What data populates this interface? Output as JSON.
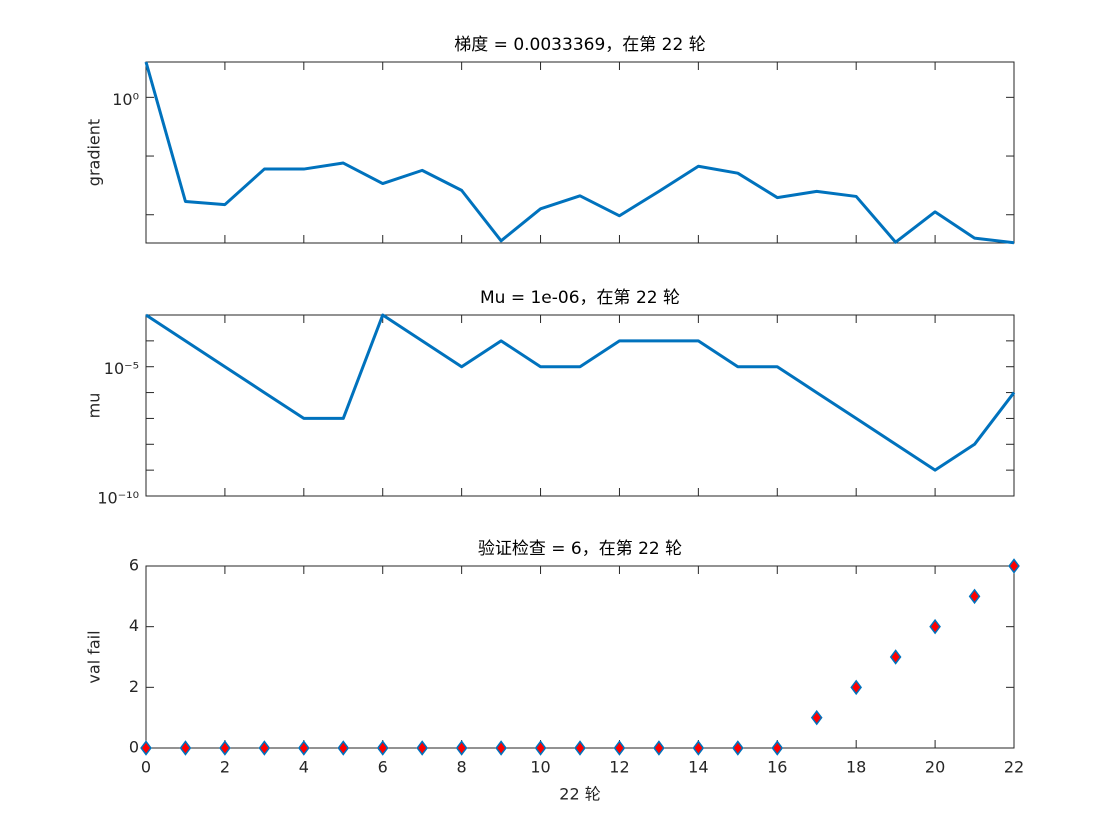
{
  "chart_data": [
    {
      "type": "line",
      "title": "梯度 = 0.0033369，在第 22 轮",
      "ylabel": "gradient",
      "log_y": true,
      "x": [
        0,
        1,
        2,
        3,
        4,
        5,
        6,
        7,
        8,
        9,
        10,
        11,
        12,
        13,
        14,
        15,
        16,
        17,
        18,
        19,
        20,
        21,
        22
      ],
      "values": [
        4.0,
        0.0168,
        0.0149,
        0.06,
        0.06,
        0.076,
        0.034,
        0.057,
        0.026,
        0.0036,
        0.0126,
        0.021,
        0.0096,
        0.025,
        0.067,
        0.051,
        0.0196,
        0.025,
        0.0205,
        0.0034,
        0.0112,
        0.004,
        0.0033369
      ],
      "color": "#0072bd",
      "xlim": [
        0,
        22
      ],
      "xticks": [
        0,
        2,
        4,
        6,
        8,
        10,
        12,
        14,
        16,
        18,
        20,
        22
      ],
      "show_xticklabels": false,
      "ylim": [
        0.0033,
        4
      ],
      "yticks": [
        {
          "value": 1,
          "label": "10⁰"
        }
      ],
      "yminorticks": [
        0.1,
        0.01
      ]
    },
    {
      "type": "line",
      "title": "Mu = 1e-06，在第 22 轮",
      "ylabel": "mu",
      "log_y": true,
      "x": [
        0,
        1,
        2,
        3,
        4,
        5,
        6,
        7,
        8,
        9,
        10,
        11,
        12,
        13,
        14,
        15,
        16,
        17,
        18,
        19,
        20,
        21,
        22
      ],
      "values": [
        0.001,
        0.0001,
        1e-05,
        1e-06,
        1e-07,
        1e-07,
        0.001,
        0.0001,
        1e-05,
        0.0001,
        1e-05,
        1e-05,
        0.0001,
        0.0001,
        0.0001,
        1e-05,
        1e-05,
        1e-06,
        1e-07,
        1e-08,
        1e-09,
        1e-08,
        1e-06
      ],
      "color": "#0072bd",
      "xlim": [
        0,
        22
      ],
      "xticks": [
        0,
        2,
        4,
        6,
        8,
        10,
        12,
        14,
        16,
        18,
        20,
        22
      ],
      "show_xticklabels": false,
      "ylim": [
        1e-10,
        0.001
      ],
      "yticks": [
        {
          "value": 1e-10,
          "label": "10⁻¹⁰"
        },
        {
          "value": 1e-05,
          "label": "10⁻⁵"
        }
      ],
      "yminorticks": [
        1e-09,
        1e-08,
        1e-07,
        1e-06,
        0.0001
      ]
    },
    {
      "type": "scatter",
      "title": "验证检查 = 6，在第 22 轮",
      "ylabel": "val fail",
      "xlabel": "22 轮",
      "log_y": false,
      "x": [
        0,
        1,
        2,
        3,
        4,
        5,
        6,
        7,
        8,
        9,
        10,
        11,
        12,
        13,
        14,
        15,
        16,
        17,
        18,
        19,
        20,
        21,
        22
      ],
      "values": [
        0,
        0,
        0,
        0,
        0,
        0,
        0,
        0,
        0,
        0,
        0,
        0,
        0,
        0,
        0,
        0,
        0,
        1,
        2,
        3,
        4,
        5,
        6
      ],
      "color": "#0072bd",
      "marker_color": "#ff0000",
      "xlim": [
        0,
        22
      ],
      "xticks": [
        0,
        2,
        4,
        6,
        8,
        10,
        12,
        14,
        16,
        18,
        20,
        22
      ],
      "show_xticklabels": true,
      "ylim": [
        0,
        6
      ],
      "yticks": [
        0,
        2,
        4,
        6
      ],
      "yminorticks": []
    }
  ]
}
